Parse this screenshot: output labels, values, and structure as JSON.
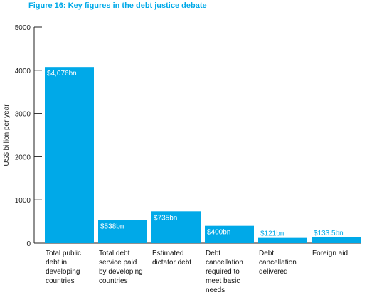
{
  "colors": {
    "accent": "#00a9e8",
    "axis": "#222222",
    "text": "#111111",
    "label_inside": "#ffffff"
  },
  "chart_data": {
    "type": "bar",
    "title": "Figure 16: Key figures in the debt justice debate",
    "xlabel": "",
    "ylabel": "US$ billion per year",
    "ylim": [
      0,
      5000
    ],
    "yticks": [
      "0",
      "1000",
      "2000",
      "3000",
      "4000",
      "5000"
    ],
    "grid": false,
    "categories": [
      "Total public debt in developing countries",
      "Total debt service paid by developing countries",
      "Estimated dictator debt",
      "Debt cancellation required to meet basic needs",
      "Debt cancellation delivered",
      "Foreign aid"
    ],
    "category_lines": [
      [
        "Total public",
        "debt in",
        "developing",
        "countries"
      ],
      [
        "Total debt",
        "service paid",
        "by developing",
        "countries"
      ],
      [
        "Estimated",
        "dictator debt"
      ],
      [
        "Debt",
        "cancellation",
        "required to",
        "meet basic",
        "needs"
      ],
      [
        "Debt",
        "cancellation",
        "delivered"
      ],
      [
        "Foreign aid"
      ]
    ],
    "values": [
      4076,
      538,
      735,
      400,
      121,
      133.5
    ],
    "data_labels": [
      "$4,076bn",
      "$538bn",
      "$735bn",
      "$400bn",
      "$121bn",
      "$133.5bn"
    ],
    "label_positions": [
      "inside",
      "inside",
      "inside",
      "inside",
      "above",
      "above"
    ]
  }
}
